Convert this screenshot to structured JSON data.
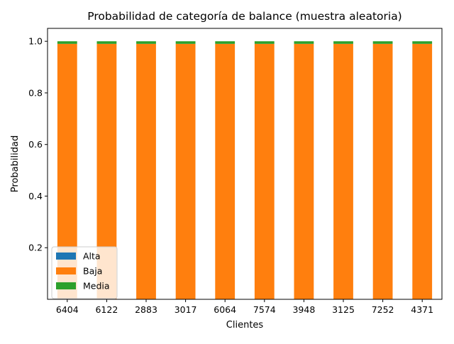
{
  "chart_data": {
    "type": "bar",
    "stacked": true,
    "title": "Probabilidad de categoría de balance (muestra aleatoria)",
    "xlabel": "Clientes",
    "ylabel": "Probabilidad",
    "categories": [
      "6404",
      "6122",
      "2883",
      "3017",
      "6064",
      "7574",
      "3948",
      "3125",
      "7252",
      "4371"
    ],
    "series": [
      {
        "name": "Alta",
        "color": "#1f77b4",
        "values": [
          0.0,
          0.0,
          0.0,
          0.0,
          0.0,
          0.0,
          0.0,
          0.0,
          0.0,
          0.0
        ]
      },
      {
        "name": "Baja",
        "color": "#ff7f0e",
        "values": [
          0.99,
          0.99,
          0.99,
          0.99,
          0.99,
          0.99,
          0.99,
          0.99,
          0.99,
          0.99
        ]
      },
      {
        "name": "Media",
        "color": "#2ca02c",
        "values": [
          0.01,
          0.01,
          0.01,
          0.01,
          0.01,
          0.01,
          0.01,
          0.01,
          0.01,
          0.01
        ]
      }
    ],
    "ylim": [
      0.0,
      1.05
    ],
    "yticks": [
      "0.2",
      "0.4",
      "0.6",
      "0.8",
      "1.0"
    ],
    "grid": false,
    "legend": "lower-left"
  }
}
